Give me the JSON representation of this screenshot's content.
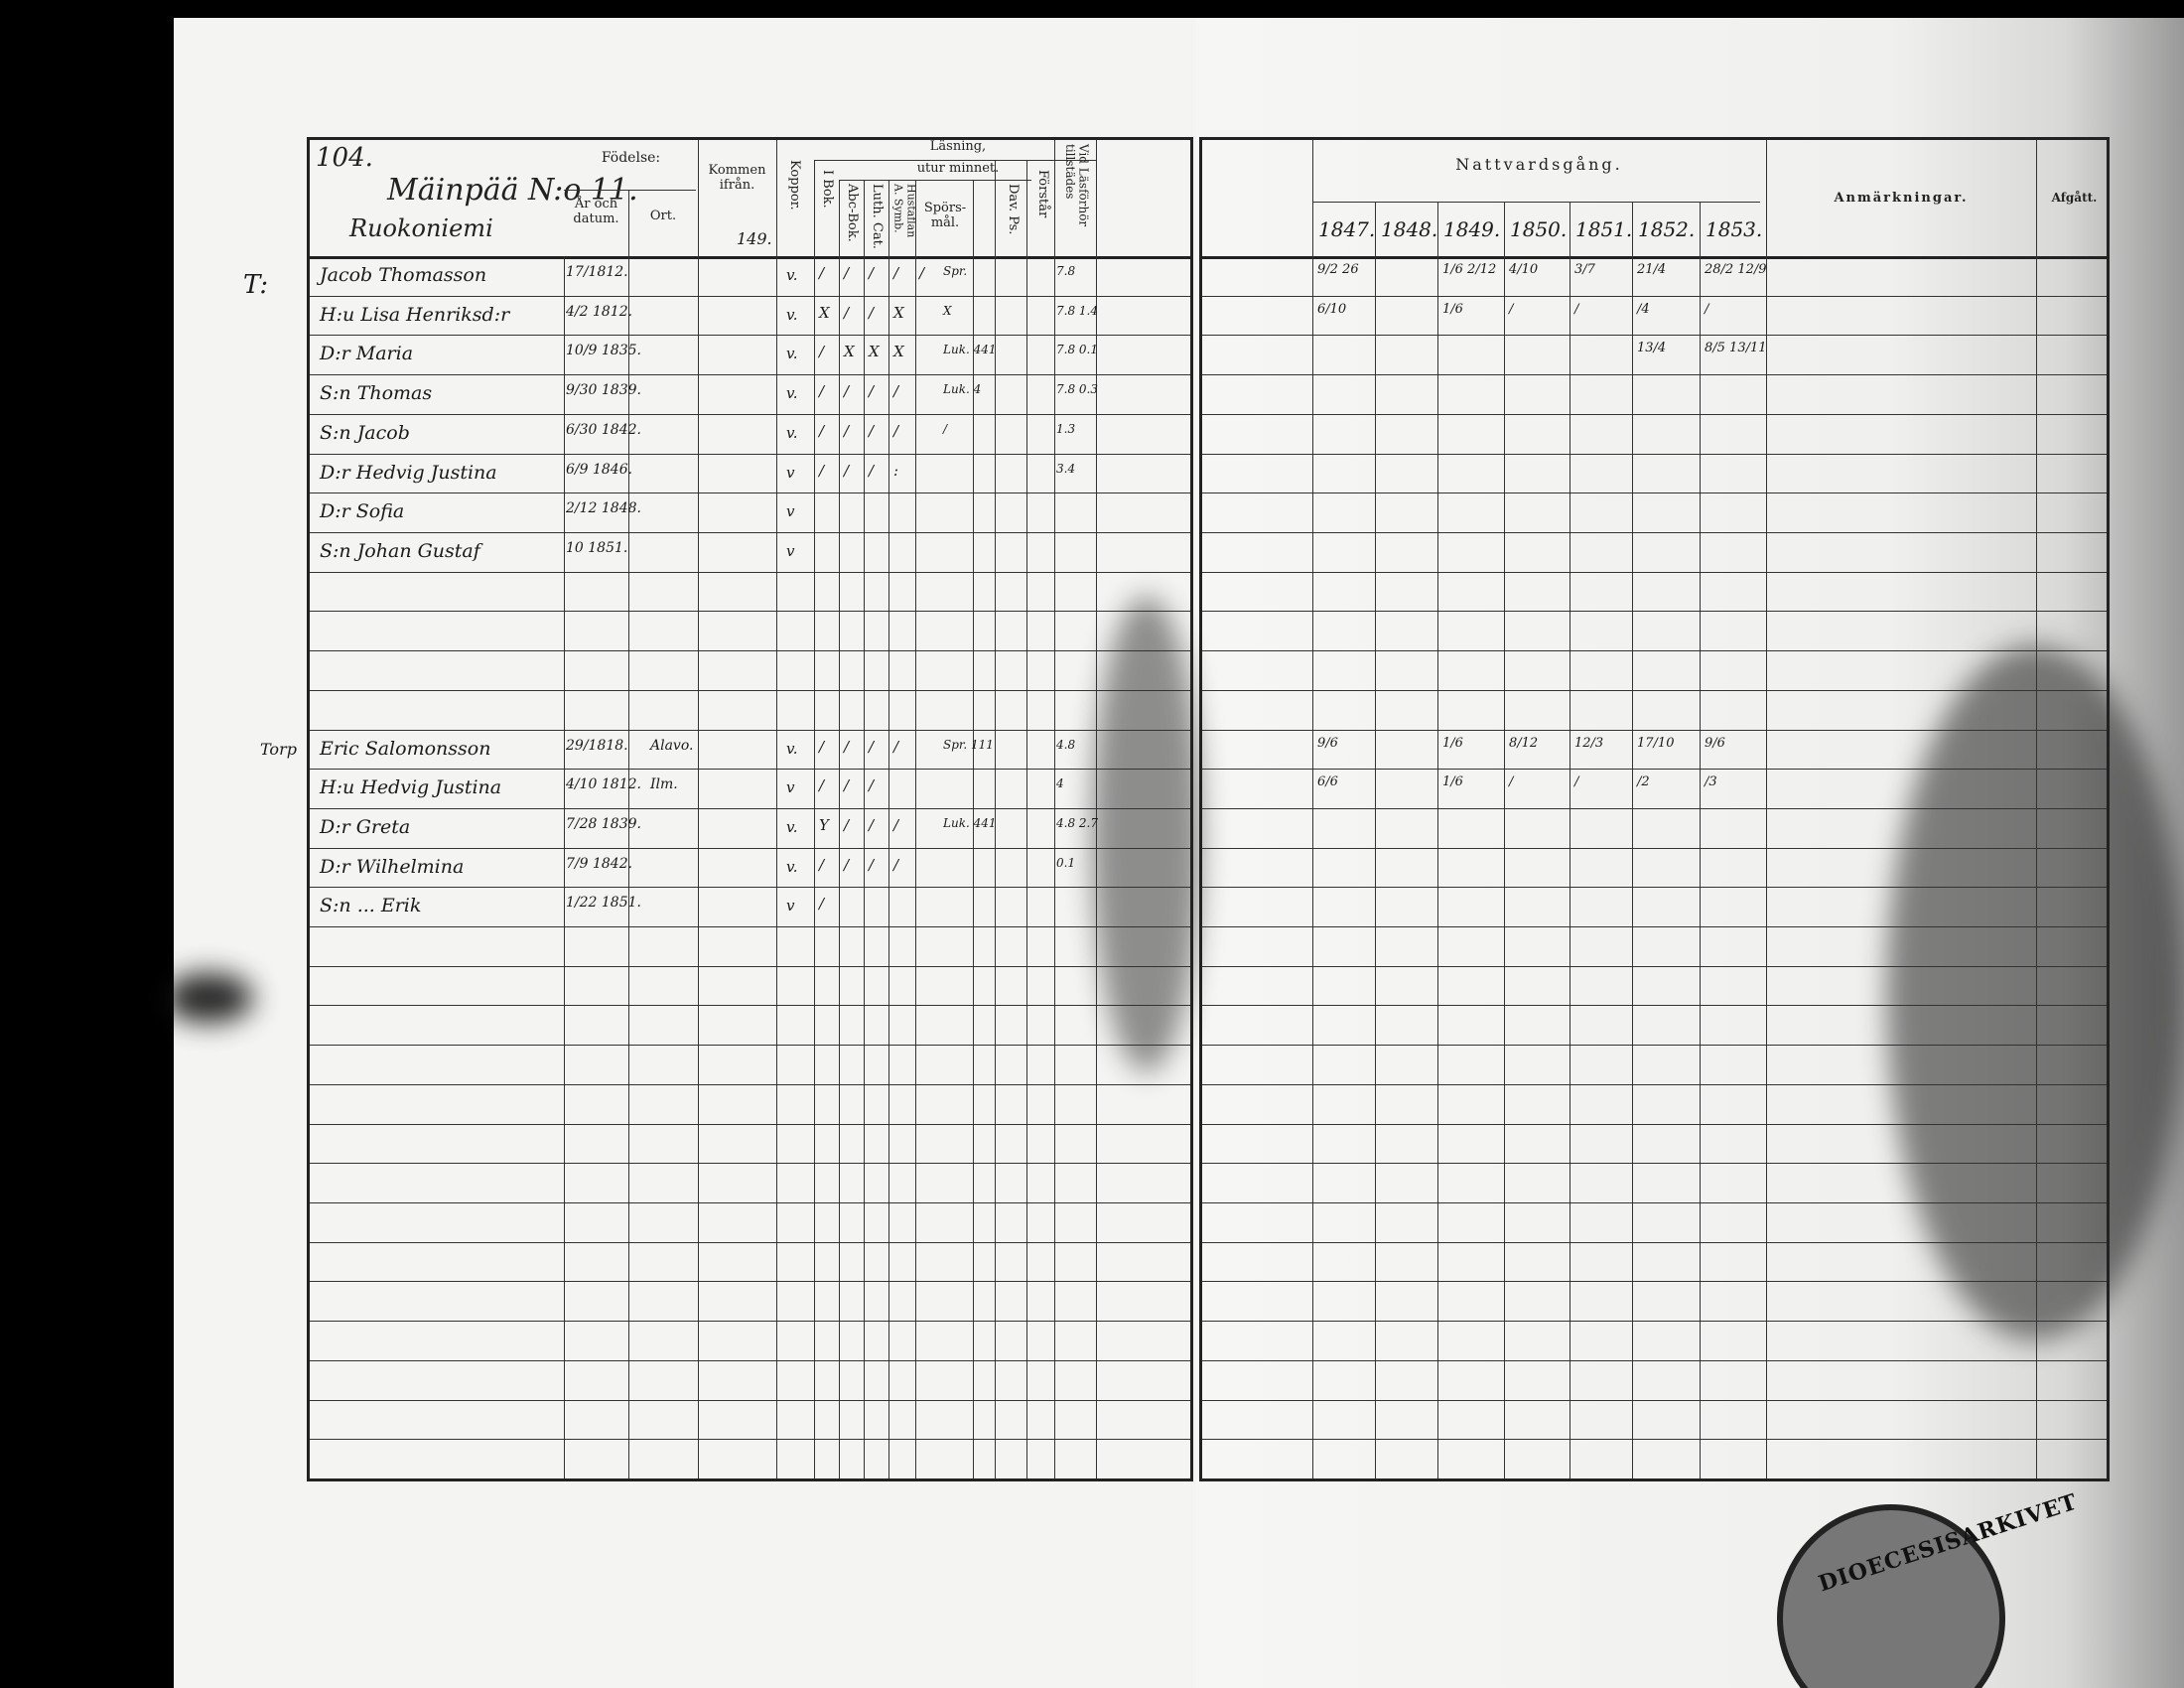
{
  "left_page": {
    "page_number": "104.",
    "farm_title": "Mäinpää N:o 11.",
    "subtitle": "Ruokoniemi",
    "headers": {
      "fodelse": "Födelse:",
      "ar_och_datum": "År och datum.",
      "ort": "Ort.",
      "kommen_ifran": "Kommen ifrån.",
      "kommen_note": "149.",
      "koppor": "Koppor.",
      "lasning": "Läsning,",
      "utur_minnet": "utur minnet.",
      "i_bok": "I Bok.",
      "abc_bok": "Abc-Bok.",
      "luth_cat": "Luth. Cat.",
      "hustaflan": "Hustaflan A. Symb.",
      "spors_mal": "Spörs-mål.",
      "dav_ps": "Dav. Ps.",
      "forstar": "Förstår",
      "vid_lasforhor": "Vid Läsförhör tillstädes"
    },
    "margin_marks": [
      "T:",
      "Torp"
    ],
    "rows": [
      {
        "name": "Jacob Thomasson",
        "date": "17/1812.",
        "place": "",
        "koppor": "v.",
        "marks": [
          "/",
          "/",
          "/",
          "/",
          "/",
          "Spr."
        ],
        "attend": "7.8"
      },
      {
        "name": "H:u Lisa Henriksd:r",
        "date": "4/2 1812.",
        "place": "",
        "koppor": "v.",
        "marks": [
          "X",
          "/",
          "/",
          "X",
          "",
          "X"
        ],
        "attend": "7.8 1.4"
      },
      {
        "name": "D:r Maria",
        "date": "10/9 1835.",
        "place": "",
        "koppor": "v.",
        "marks": [
          "/",
          "X",
          "X",
          "X",
          "",
          "Luk. 441"
        ],
        "attend": "7.8 0.1"
      },
      {
        "name": "S:n Thomas",
        "date": "9/30 1839.",
        "place": "",
        "koppor": "v.",
        "marks": [
          "/",
          "/",
          "/",
          "/",
          "",
          "Luk. 4"
        ],
        "attend": "7.8 0.3"
      },
      {
        "name": "S:n Jacob",
        "date": "6/30 1842.",
        "place": "",
        "koppor": "v.",
        "marks": [
          "/",
          "/",
          "/",
          "/",
          "",
          "/"
        ],
        "attend": "1.3"
      },
      {
        "name": "D:r Hedvig Justina",
        "date": "6/9 1846.",
        "place": "",
        "koppor": "v",
        "marks": [
          "/",
          "/",
          "/",
          ":",
          "",
          ""
        ],
        "attend": "3.4"
      },
      {
        "name": "D:r Sofia",
        "date": "2/12 1848.",
        "place": "",
        "koppor": "v",
        "marks": [],
        "attend": ""
      },
      {
        "name": "S:n Johan Gustaf",
        "date": "10 1851.",
        "place": "",
        "koppor": "v",
        "marks": [],
        "attend": ""
      },
      {
        "name": "",
        "date": "",
        "place": "",
        "koppor": "",
        "marks": [],
        "attend": ""
      },
      {
        "name": "",
        "date": "",
        "place": "",
        "koppor": "",
        "marks": [],
        "attend": ""
      },
      {
        "name": "",
        "date": "",
        "place": "",
        "koppor": "",
        "marks": [],
        "attend": ""
      },
      {
        "name": "",
        "date": "",
        "place": "",
        "koppor": "",
        "marks": [],
        "attend": ""
      },
      {
        "name": "Eric Salomonsson",
        "date": "29/1818.",
        "place": "Alavo.",
        "koppor": "v.",
        "marks": [
          "/",
          "/",
          "/",
          "/",
          "",
          "Spr. 111"
        ],
        "attend": "4.8"
      },
      {
        "name": "H:u Hedvig Justina",
        "date": "4/10 1812.",
        "place": "Ilm.",
        "koppor": "v",
        "marks": [
          "/",
          "/",
          "/",
          "",
          "",
          ""
        ],
        "attend": "4"
      },
      {
        "name": "D:r Greta",
        "date": "7/28 1839.",
        "place": "",
        "koppor": "v.",
        "marks": [
          "Y",
          "/",
          "/",
          "/",
          "",
          "Luk. 441"
        ],
        "attend": "4.8 2.7"
      },
      {
        "name": "D:r Wilhelmina",
        "date": "7/9 1842.",
        "place": "",
        "koppor": "v.",
        "marks": [
          "/",
          "/",
          "/",
          "/",
          "",
          ""
        ],
        "attend": "0.1"
      },
      {
        "name": "S:n ... Erik",
        "date": "1/22 1851.",
        "place": "",
        "koppor": "v",
        "marks": [
          "/"
        ],
        "attend": ""
      }
    ],
    "total_rows": 31
  },
  "right_page": {
    "title": "Nattvardsgång.",
    "years": [
      "1847.",
      "1848.",
      "1849.",
      "1850.",
      "1851.",
      "1852.",
      "1853."
    ],
    "remarks_header": "Anmärkningar.",
    "afgatt_header": "Afgått.",
    "communion_rows": [
      [
        "9/2 26",
        "",
        "1/6 2/12",
        "4/10",
        "3/7",
        "21/4",
        "28/2 12/9"
      ],
      [
        "6/10",
        "",
        "1/6",
        "/",
        "/",
        "/4",
        "/"
      ],
      [
        "",
        "",
        "",
        "",
        "",
        "13/4",
        "8/5 13/11"
      ],
      [],
      [],
      [],
      [],
      [],
      [],
      [],
      [],
      [],
      [
        "9/6",
        "",
        "1/6",
        "8/12",
        "12/3",
        "17/10",
        "9/6"
      ],
      [
        "6/6",
        "",
        "1/6",
        "/",
        "/",
        "/2",
        "/3"
      ],
      [],
      [],
      []
    ]
  },
  "stamp_text": "DIOECESISARKIVET"
}
